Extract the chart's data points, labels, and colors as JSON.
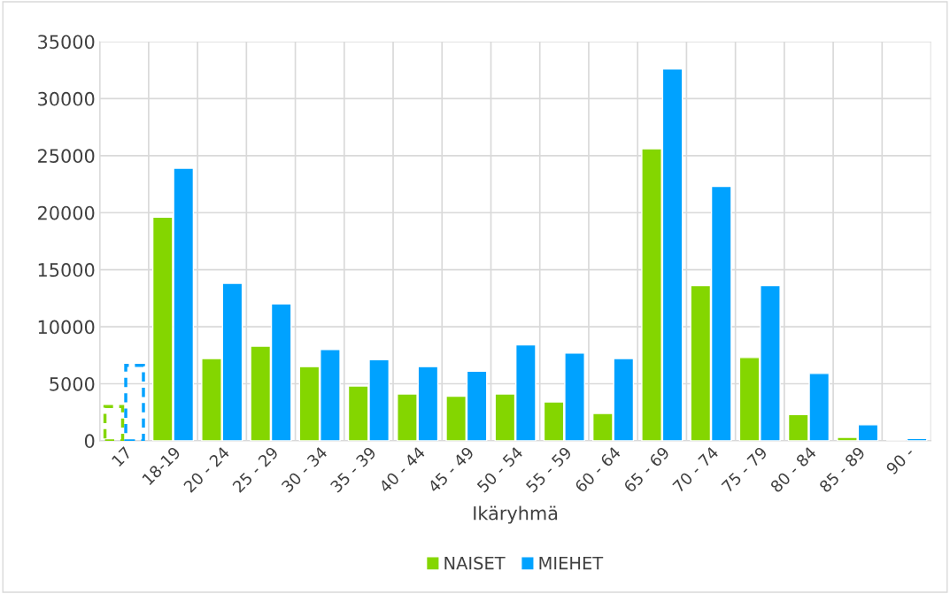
{
  "chart_data": {
    "type": "bar",
    "xlabel": "Ikäryhmä",
    "categories": [
      "17",
      "18-19",
      "20 - 24",
      "25 - 29",
      "30 - 34",
      "35 - 39",
      "40 - 44",
      "45 - 49",
      "50 - 54",
      "55 - 59",
      "60 - 64",
      "65 - 69",
      "70 - 74",
      "75 - 79",
      "80 - 84",
      "85 - 89",
      "90 -"
    ],
    "series": [
      {
        "name": "NAISET",
        "color": "#84d600",
        "colors": [
          null,
          "#84d600",
          "#84d600",
          "#84d600",
          "#84d600",
          "#84d600",
          "#84d600",
          "#84d600",
          "#84d600",
          "#84d600",
          "#84d600",
          "#84d600",
          "#84d600",
          "#84d600",
          "#84d600",
          "#84d600",
          "#84d600"
        ],
        "values": [
          3000,
          19600,
          7200,
          8300,
          6500,
          4800,
          4100,
          3900,
          4100,
          3400,
          2400,
          25600,
          13600,
          7300,
          2300,
          300,
          null
        ]
      },
      {
        "name": "MIEHET",
        "color": "#00a2ff",
        "colors": [
          null,
          "#00a2ff",
          "#00a2ff",
          "#00a2ff",
          "#00a2ff",
          "#00a2ff",
          "#00a2ff",
          "#00a2ff",
          "#00a2ff",
          "#00a2ff",
          "#00a2ff",
          "#00a2ff",
          "#00a2ff",
          "#00a2ff",
          "#00a2ff",
          "#00a2ff",
          "#00a2ff"
        ],
        "values": [
          6600,
          23900,
          13800,
          12000,
          8000,
          7100,
          6500,
          6100,
          8400,
          7700,
          7200,
          32600,
          22300,
          13600,
          5900,
          1400,
          200
        ]
      }
    ],
    "ylim": [
      0,
      35000
    ],
    "yticks": [
      0,
      5000,
      10000,
      15000,
      20000,
      25000,
      30000,
      35000
    ],
    "grid": true,
    "legend": "bottom"
  }
}
